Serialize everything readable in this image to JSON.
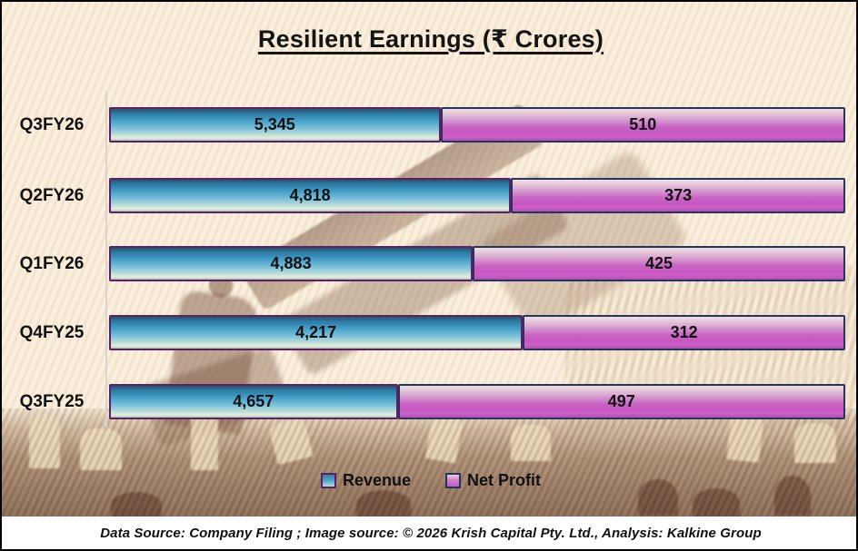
{
  "title": {
    "text": "Resilient Earnings (₹ Crores)"
  },
  "chart_data": {
    "type": "bar",
    "orientation": "horizontal-stacked",
    "title": "Resilient Earnings (₹ Crores)",
    "categories": [
      "Q3FY26",
      "Q2FY26",
      "Q1FY26",
      "Q4FY25",
      "Q3FY25"
    ],
    "series": [
      {
        "name": "Revenue",
        "color": "#2e86b4",
        "values": [
          5345,
          4818,
          4883,
          4217,
          4657
        ],
        "labels": [
          "5,345",
          "4,818",
          "4,883",
          "4,217",
          "4,657"
        ]
      },
      {
        "name": "Net Profit",
        "color": "#c653c1",
        "values": [
          510,
          373,
          425,
          312,
          497
        ],
        "labels": [
          "510",
          "373",
          "425",
          "312",
          "497"
        ]
      }
    ],
    "legend_position": "bottom",
    "grid": false,
    "layout": {
      "revenue_segment_pct": [
        45.0,
        54.6,
        49.4,
        56.2,
        39.2
      ]
    }
  },
  "legend": {
    "items": [
      {
        "label": "Revenue",
        "color": "#2e86b4"
      },
      {
        "label": "Net Profit",
        "color": "#c653c1"
      }
    ]
  },
  "footer": {
    "text": "Data Source: Company Filing ; Image source: © 2026 Krish Capital Pty. Ltd., Analysis: Kalkine Group"
  },
  "colors": {
    "revenue_fill": "#2e86b4",
    "net_profit_fill": "#c653c1",
    "revenue_border": "#5e1f63",
    "net_profit_border": "#25365e",
    "background": "#f8ecd9",
    "footer_background": "#ffffff",
    "frame": "#000000"
  }
}
